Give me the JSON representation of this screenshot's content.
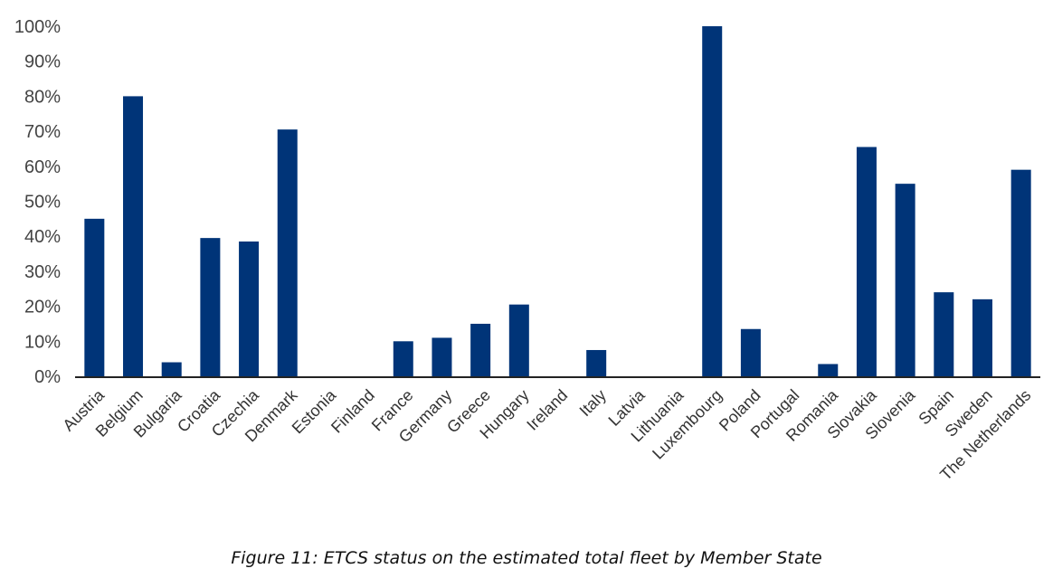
{
  "chart_data": {
    "type": "bar",
    "title": "",
    "xlabel": "",
    "ylabel": "",
    "ylim": [
      0,
      100
    ],
    "yticks": [
      "0%",
      "10%",
      "20%",
      "30%",
      "40%",
      "50%",
      "60%",
      "70%",
      "80%",
      "90%",
      "100%"
    ],
    "bar_color": "#003478",
    "categories": [
      "Austria",
      "Belgium",
      "Bulgaria",
      "Croatia",
      "Czechia",
      "Denmark",
      "Estonia",
      "Finland",
      "France",
      "Germany",
      "Greece",
      "Hungary",
      "Ireland",
      "Italy",
      "Latvia",
      "Lithuania",
      "Luxembourg",
      "Poland",
      "Portugal",
      "Romania",
      "Slovakia",
      "Slovenia",
      "Spain",
      "Sweden",
      "The Netherlands"
    ],
    "values": [
      45,
      80,
      4,
      39.5,
      38.5,
      70.5,
      0,
      0,
      10,
      11,
      15,
      20.5,
      0,
      7.5,
      0,
      0,
      100,
      13.5,
      0,
      3.5,
      65.5,
      55,
      24,
      22,
      59
    ]
  },
  "caption": "Figure 11: ETCS status on the estimated total fleet by Member State"
}
